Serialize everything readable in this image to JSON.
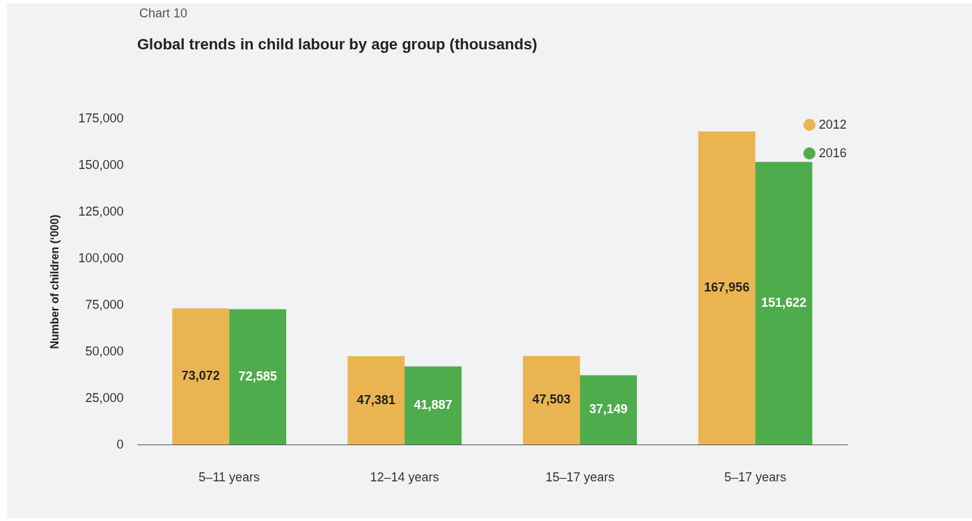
{
  "chart_data": {
    "type": "bar",
    "title": "Global trends in child labour by age group (thousands)",
    "ylabel": "Number of children (‘000)",
    "annotations": [
      "Chart 10"
    ],
    "categories": [
      "5–11 years",
      "12–14 years",
      "15–17 years",
      "5–17 years"
    ],
    "series": [
      {
        "name": "2012",
        "color": "#eab551",
        "values": [
          73072,
          47381,
          47503,
          167956
        ],
        "value_labels": [
          "73,072",
          "47,381",
          "47,503",
          "167,956"
        ]
      },
      {
        "name": "2016",
        "color": "#4fac4c",
        "values": [
          72585,
          41887,
          37149,
          151622
        ],
        "value_labels": [
          "72,585",
          "41,887",
          "37,149",
          "151,622"
        ]
      }
    ],
    "ylim": [
      0,
      175000
    ],
    "yticks": [
      0,
      {
        "value": 25000,
        "label": "25,000"
      },
      {
        "value": 50000,
        "label": "50,000"
      },
      {
        "value": 75000,
        "label": "75,000"
      },
      {
        "value": 100000,
        "label": "100,000"
      },
      {
        "value": 125000,
        "label": "125,000"
      },
      {
        "value": 150000,
        "label": "150,000"
      },
      {
        "value": 175000,
        "label": "175,000"
      }
    ],
    "grid": false,
    "legend": "top right"
  }
}
